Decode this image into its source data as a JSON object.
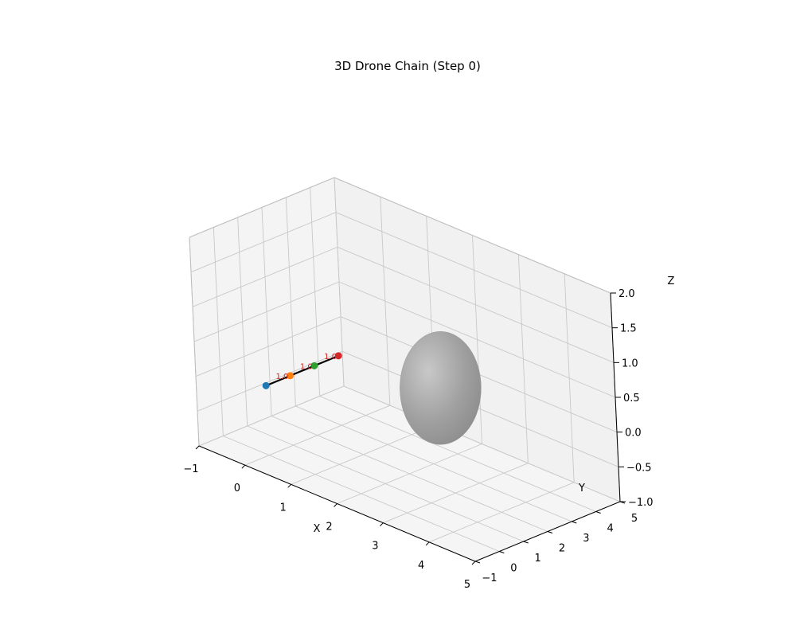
{
  "chart_data": {
    "type": "scatter",
    "projection": "3d",
    "title": "3D Drone Chain (Step 0)",
    "xlabel": "X",
    "ylabel": "Y",
    "zlabel": "Z",
    "xlim": [
      -1,
      5
    ],
    "ylim": [
      -1,
      5
    ],
    "zlim": [
      -1,
      2
    ],
    "xticks": [
      "−1",
      "0",
      "1",
      "2",
      "3",
      "4",
      "5"
    ],
    "yticks": [
      "−1",
      "0",
      "1",
      "2",
      "3",
      "4",
      "5"
    ],
    "zticks": [
      "−1.0",
      "−0.5",
      "0.0",
      "0.5",
      "1.0",
      "1.5",
      "2.0"
    ],
    "grid": true,
    "drones": [
      {
        "x": 0,
        "y": 0,
        "z": 0,
        "color": "#1f77b4"
      },
      {
        "x": 0,
        "y": 1,
        "z": 0,
        "color": "#ff7f0e",
        "label": "1.0"
      },
      {
        "x": 0,
        "y": 2,
        "z": 0,
        "color": "#2ca02c",
        "label": "1.0"
      },
      {
        "x": 0,
        "y": 3,
        "z": 0,
        "color": "#d62728",
        "label": "1.0"
      }
    ],
    "chain_color": "#000000",
    "obstacle": {
      "shape": "ellipsoid",
      "center": [
        2.5,
        2.5,
        0.3
      ],
      "color": "#a0a0a0"
    }
  }
}
